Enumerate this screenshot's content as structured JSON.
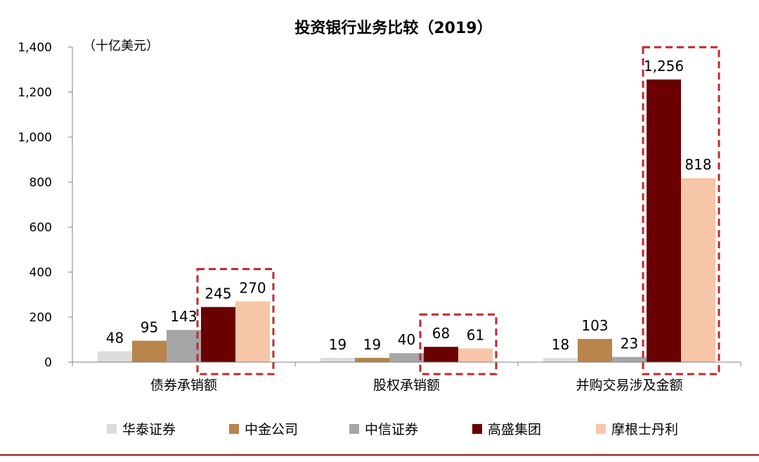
{
  "chart_data": {
    "type": "bar",
    "title": "投资银行业务比较（2019）",
    "unit_label": "（十亿美元）",
    "categories": [
      "债券承销额",
      "股权承销额",
      "并购交易涉及金额"
    ],
    "series": [
      {
        "name": "华泰证券",
        "color": "#dcdcdc",
        "values": [
          48,
          19,
          18
        ]
      },
      {
        "name": "中金公司",
        "color": "#b8844a",
        "values": [
          95,
          19,
          103
        ]
      },
      {
        "name": "中信证券",
        "color": "#a6a6a6",
        "values": [
          143,
          40,
          23
        ]
      },
      {
        "name": "高盛集团",
        "color": "#6b0000",
        "values": [
          245,
          68,
          1256
        ]
      },
      {
        "name": "摩根士丹利",
        "color": "#f7c6a8",
        "values": [
          270,
          61,
          818
        ]
      }
    ],
    "value_labels": [
      [
        "48",
        "19",
        "18"
      ],
      [
        "95",
        "19",
        "103"
      ],
      [
        "143",
        "40",
        "23"
      ],
      [
        "245",
        "68",
        "1,256"
      ],
      [
        "270",
        "61",
        "818"
      ]
    ],
    "yticks": [
      0,
      200,
      400,
      600,
      800,
      1000,
      1200,
      1400
    ],
    "ytick_labels": [
      "0",
      "200",
      "400",
      "600",
      "800",
      "1,000",
      "1,200",
      "1,400"
    ],
    "ylim": [
      0,
      1400
    ],
    "highlight_series": [
      "高盛集团",
      "摩根士丹利"
    ],
    "highlight_color": "#c0282d",
    "legend_position": "bottom",
    "grid": false
  }
}
